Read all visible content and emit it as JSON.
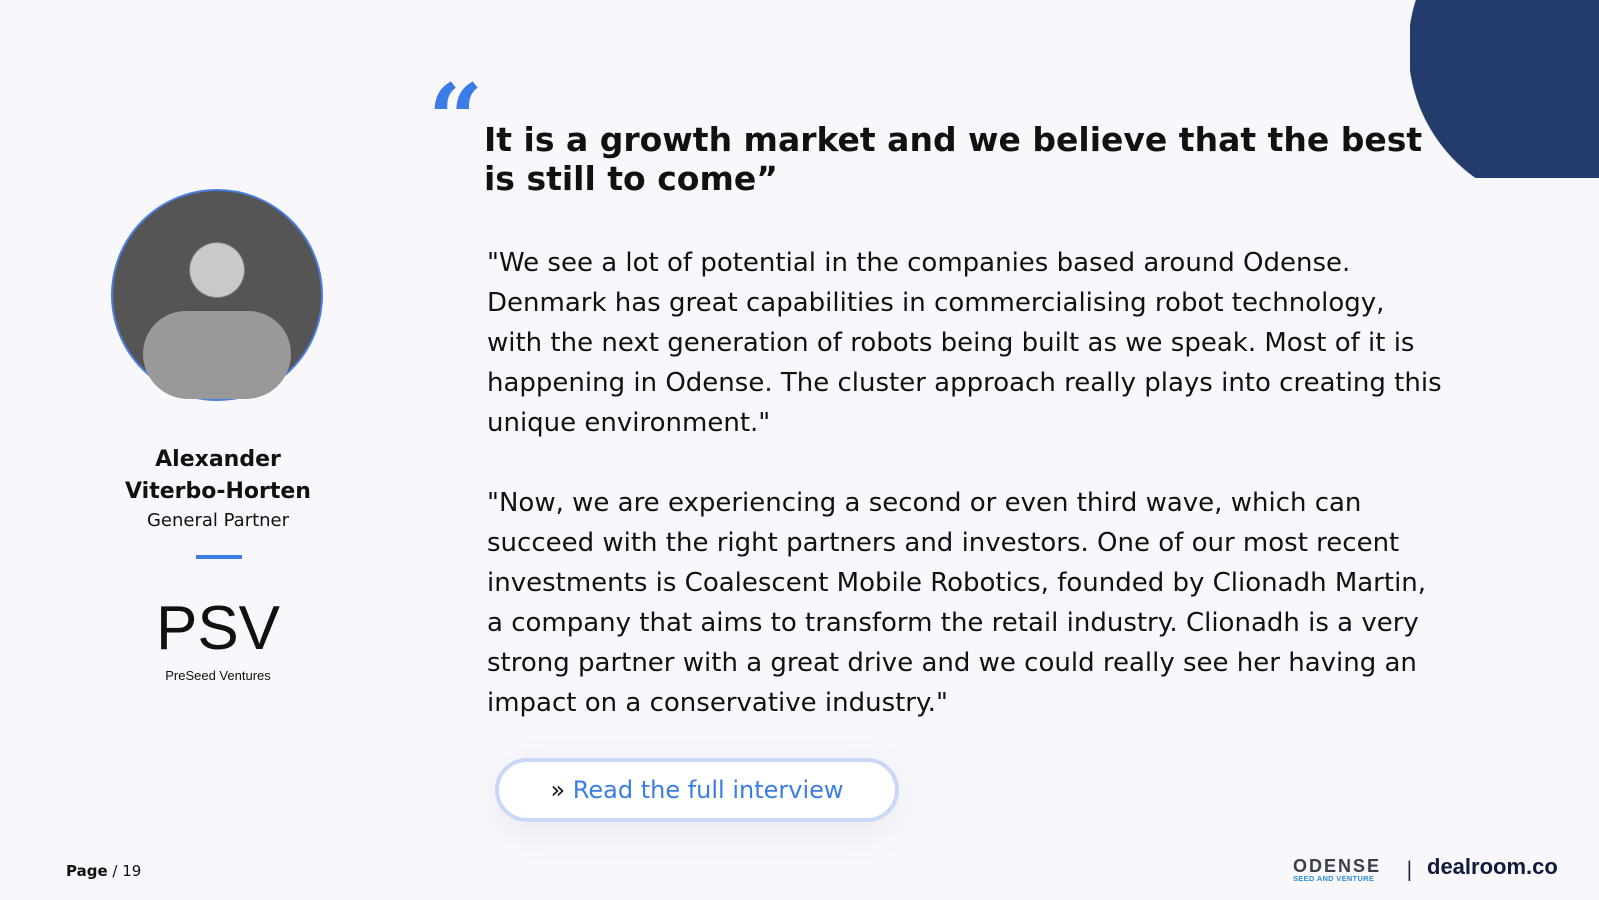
{
  "person": {
    "name_line1": "Alexander",
    "name_line2": "Viterbo-Horten",
    "role": "General Partner"
  },
  "company": {
    "logo_text": "PSV",
    "logo_subtext": "PreSeed Ventures"
  },
  "quote": {
    "mark": "“",
    "headline": "It is a growth market and we believe that the best is still to come”",
    "paragraphs": [
      "\"We see a lot of potential in the companies based around Odense. Denmark has great capabilities in commercialising robot technology, with the next generation of robots being built as we speak. Most of it is happening in Odense. The cluster approach really plays into creating this unique environment.\"",
      "\"Now, we are experiencing a second or even third wave, which can succeed with the right partners and investors. One of our most recent investments is Coalescent Mobile Robotics, founded by Clionadh Martin, a company that aims to transform the retail industry. Clionadh is a very strong partner with a great drive and we could really see her having an impact on a conservative industry.\""
    ]
  },
  "cta": {
    "prefix": "» ",
    "label": "Read the full interview"
  },
  "footer": {
    "page_label": "Page",
    "page_number": "/ 19",
    "odense_logo": "ODENSE",
    "odense_sub": "SEED AND VENTURE",
    "separator": "|",
    "dealroom_logo": "dealroom.co"
  },
  "colors": {
    "accent": "#3b7ce6",
    "corner": "#233c6b"
  }
}
